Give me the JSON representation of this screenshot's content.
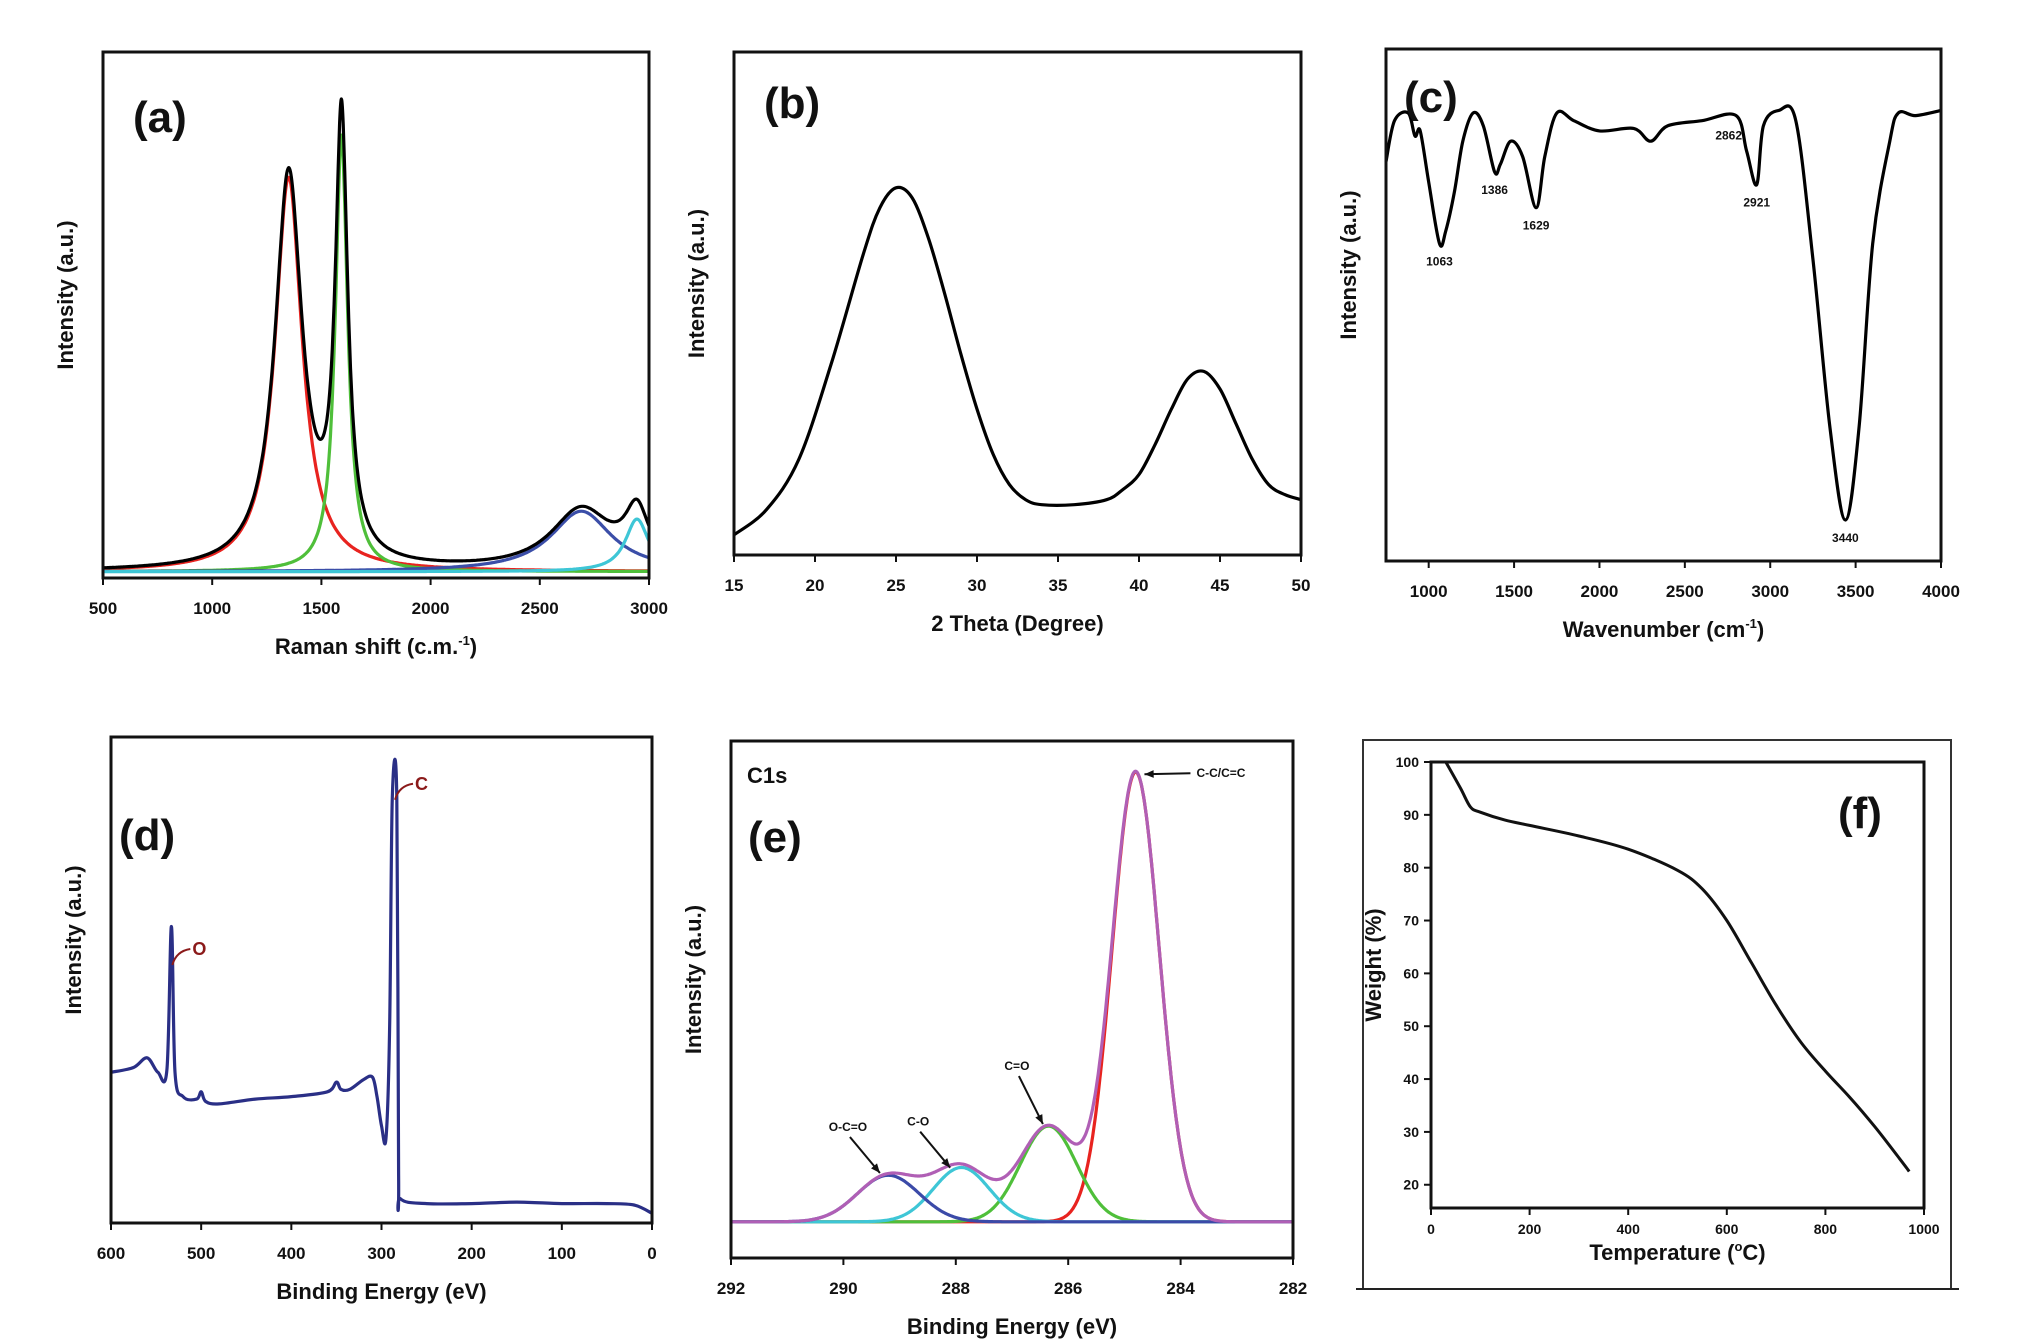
{
  "chart_data": [
    {
      "id": "a",
      "panel_label": "(a)",
      "type": "line",
      "xlabel": "Raman shift (c.m.",
      "xlabel_sup": "-1",
      "xlabel_end": ")",
      "ylabel": "Intensity (a.u.)",
      "xlim": [
        500,
        3000
      ],
      "ylim": [
        0,
        1
      ],
      "xticks": [
        "500",
        "1000",
        "1500",
        "2000",
        "2500",
        "3000"
      ],
      "grid": false,
      "legend": "none",
      "series": [
        {
          "kind": "peak",
          "shape": "lorentzian",
          "center": 1350,
          "amplitude": 0.75,
          "hwhm": 75,
          "baseline": 0.012,
          "color": "#e8231f"
        },
        {
          "kind": "peak",
          "shape": "lorentzian",
          "center": 1592,
          "amplitude": 0.83,
          "hwhm": 34,
          "baseline": 0.012,
          "color": "#4fbf3a"
        },
        {
          "kind": "peak",
          "shape": "lorentzian",
          "center": 2690,
          "amplitude": 0.115,
          "hwhm": 170,
          "baseline": 0.012,
          "color": "#3b4ea8"
        },
        {
          "kind": "peak",
          "shape": "lorentzian",
          "center": 2945,
          "amplitude": 0.1,
          "hwhm": 65,
          "baseline": 0.012,
          "color": "#3ec6d6"
        },
        {
          "kind": "sum",
          "baseline": 0.012,
          "color": "#000000"
        }
      ]
    },
    {
      "id": "b",
      "panel_label": "(b)",
      "type": "line",
      "xlabel": "2 Theta (Degree)",
      "ylabel": "Intensity (a.u.)",
      "xlim": [
        15,
        50
      ],
      "ylim": [
        0,
        1
      ],
      "xticks": [
        "15",
        "20",
        "25",
        "30",
        "35",
        "40",
        "45",
        "50"
      ],
      "grid": false,
      "legend": "none",
      "series": [
        {
          "kind": "points",
          "color": "#000000",
          "points": [
            [
              15,
              0.04
            ],
            [
              17,
              0.09
            ],
            [
              19,
              0.19
            ],
            [
              21,
              0.38
            ],
            [
              23,
              0.6
            ],
            [
              24,
              0.69
            ],
            [
              25,
              0.73
            ],
            [
              26,
              0.71
            ],
            [
              27,
              0.63
            ],
            [
              28,
              0.52
            ],
            [
              29,
              0.4
            ],
            [
              30,
              0.29
            ],
            [
              31,
              0.2
            ],
            [
              32,
              0.14
            ],
            [
              33,
              0.11
            ],
            [
              34,
              0.1
            ],
            [
              36,
              0.1
            ],
            [
              38,
              0.11
            ],
            [
              39,
              0.13
            ],
            [
              40,
              0.16
            ],
            [
              41,
              0.22
            ],
            [
              42,
              0.29
            ],
            [
              43,
              0.35
            ],
            [
              44,
              0.365
            ],
            [
              45,
              0.33
            ],
            [
              46,
              0.26
            ],
            [
              47,
              0.19
            ],
            [
              48,
              0.14
            ],
            [
              49,
              0.12
            ],
            [
              50,
              0.11
            ]
          ]
        }
      ]
    },
    {
      "id": "c",
      "panel_label": "(c)",
      "type": "line",
      "xlabel": "Wavenumber (cm",
      "xlabel_sup": "-1",
      "xlabel_end": ")",
      "ylabel": "Intensity (a.u.)",
      "xlim": [
        750,
        4000
      ],
      "ylim": [
        0,
        1
      ],
      "xticks": [
        "1000",
        "1500",
        "2000",
        "2500",
        "3000",
        "3500",
        "4000"
      ],
      "grid": false,
      "legend": "none",
      "series": [
        {
          "kind": "points",
          "color": "#000000",
          "points": [
            [
              750,
              0.78
            ],
            [
              800,
              0.86
            ],
            [
              880,
              0.875
            ],
            [
              920,
              0.83
            ],
            [
              950,
              0.84
            ],
            [
              1000,
              0.74
            ],
            [
              1063,
              0.62
            ],
            [
              1100,
              0.645
            ],
            [
              1150,
              0.72
            ],
            [
              1200,
              0.82
            ],
            [
              1260,
              0.875
            ],
            [
              1320,
              0.85
            ],
            [
              1386,
              0.76
            ],
            [
              1420,
              0.775
            ],
            [
              1480,
              0.82
            ],
            [
              1550,
              0.79
            ],
            [
              1629,
              0.69
            ],
            [
              1680,
              0.79
            ],
            [
              1750,
              0.875
            ],
            [
              1850,
              0.86
            ],
            [
              2000,
              0.84
            ],
            [
              2200,
              0.845
            ],
            [
              2300,
              0.82
            ],
            [
              2400,
              0.85
            ],
            [
              2600,
              0.86
            ],
            [
              2800,
              0.87
            ],
            [
              2862,
              0.8
            ],
            [
              2921,
              0.735
            ],
            [
              2960,
              0.85
            ],
            [
              3050,
              0.88
            ],
            [
              3150,
              0.86
            ],
            [
              3250,
              0.59
            ],
            [
              3350,
              0.26
            ],
            [
              3440,
              0.08
            ],
            [
              3520,
              0.26
            ],
            [
              3600,
              0.62
            ],
            [
              3700,
              0.82
            ],
            [
              3750,
              0.875
            ],
            [
              3850,
              0.87
            ],
            [
              4000,
              0.88
            ]
          ]
        }
      ],
      "annotations": [
        {
          "text": "1063",
          "x": 1063
        },
        {
          "text": "1386",
          "x": 1386
        },
        {
          "text": "1629",
          "x": 1629
        },
        {
          "text": "2862",
          "x": 2862
        },
        {
          "text": "2921",
          "x": 2921
        },
        {
          "text": "3440",
          "x": 3440
        }
      ]
    },
    {
      "id": "d",
      "panel_label": "(d)",
      "type": "line",
      "xlabel": "Binding Energy (eV)",
      "ylabel": "Intensity (a.u.)",
      "xlim": [
        600,
        0
      ],
      "ylim": [
        0,
        1
      ],
      "xticks": [
        "600",
        "500",
        "400",
        "300",
        "200",
        "100",
        "0"
      ],
      "grid": false,
      "legend": "none",
      "series": [
        {
          "kind": "points",
          "color": "#2a2f86",
          "points": [
            [
              600,
              0.31
            ],
            [
              575,
              0.32
            ],
            [
              560,
              0.34
            ],
            [
              548,
              0.31
            ],
            [
              538,
              0.315
            ],
            [
              533,
              0.61
            ],
            [
              529,
              0.31
            ],
            [
              520,
              0.26
            ],
            [
              505,
              0.255
            ],
            [
              500,
              0.27
            ],
            [
              495,
              0.25
            ],
            [
              480,
              0.245
            ],
            [
              440,
              0.255
            ],
            [
              400,
              0.26
            ],
            [
              360,
              0.27
            ],
            [
              350,
              0.29
            ],
            [
              345,
              0.275
            ],
            [
              335,
              0.275
            ],
            [
              320,
              0.295
            ],
            [
              310,
              0.3
            ],
            [
              305,
              0.26
            ],
            [
              300,
              0.2
            ],
            [
              295,
              0.175
            ],
            [
              291,
              0.4
            ],
            [
              288,
              0.875
            ],
            [
              283,
              0.875
            ],
            [
              281,
              0.1
            ],
            [
              279,
              0.05
            ],
            [
              250,
              0.04
            ],
            [
              200,
              0.04
            ],
            [
              150,
              0.043
            ],
            [
              100,
              0.04
            ],
            [
              50,
              0.04
            ],
            [
              20,
              0.037
            ],
            [
              0,
              0.02
            ]
          ]
        }
      ],
      "annotations": [
        {
          "text": "O",
          "x": 532
        },
        {
          "text": "C",
          "x": 285
        }
      ]
    },
    {
      "id": "e",
      "panel_label": "(e)",
      "title": "C1s",
      "type": "line",
      "xlabel": "Binding Energy (eV)",
      "ylabel": "Intensity (a.u.)",
      "xlim": [
        292,
        282
      ],
      "ylim": [
        0,
        1
      ],
      "xticks": [
        "292",
        "290",
        "288",
        "286",
        "284",
        "282"
      ],
      "grid": false,
      "legend": "none",
      "series": [
        {
          "kind": "peak",
          "shape": "gaussian",
          "center": 284.8,
          "amplitude": 0.87,
          "sigma": 0.42,
          "baseline": 0.07,
          "color": "#e8231f"
        },
        {
          "kind": "peak",
          "shape": "gaussian",
          "center": 286.35,
          "amplitude": 0.185,
          "sigma": 0.5,
          "baseline": 0.07,
          "color": "#4fbf3a"
        },
        {
          "kind": "peak",
          "shape": "gaussian",
          "center": 287.9,
          "amplitude": 0.105,
          "sigma": 0.5,
          "baseline": 0.07,
          "color": "#3ec6d6"
        },
        {
          "kind": "peak",
          "shape": "gaussian",
          "center": 289.2,
          "amplitude": 0.09,
          "sigma": 0.55,
          "baseline": 0.07,
          "color": "#3b4aa8"
        },
        {
          "kind": "sum",
          "baseline": 0.07,
          "color": "#b05fb5"
        }
      ],
      "annotations": [
        {
          "text": "C-C/C=C",
          "x": 284.75,
          "component": 0
        },
        {
          "text": "C=O",
          "x": 286.45,
          "component": 1
        },
        {
          "text": "C-O",
          "x": 288.1,
          "component": 2
        },
        {
          "text": "O-C=O",
          "x": 289.35,
          "component": 3
        }
      ]
    },
    {
      "id": "f",
      "panel_label": "(f)",
      "type": "line",
      "xlabel": "Temperature (",
      "xlabel_sup": "o",
      "xlabel_end": "C)",
      "ylabel": "Weight (%)",
      "xlim": [
        0,
        1000
      ],
      "ylim": [
        15.6,
        100
      ],
      "xticks": [
        "0",
        "200",
        "400",
        "600",
        "800",
        "1000"
      ],
      "yticks": [
        "20",
        "30",
        "40",
        "50",
        "60",
        "70",
        "80",
        "90",
        "100"
      ],
      "grid": false,
      "legend": "none",
      "series": [
        {
          "kind": "points",
          "color": "#111111",
          "points": [
            [
              30,
              100
            ],
            [
              60,
              95
            ],
            [
              80,
              91.5
            ],
            [
              100,
              90.5
            ],
            [
              150,
              89
            ],
            [
              200,
              88
            ],
            [
              300,
              86
            ],
            [
              400,
              83.5
            ],
            [
              500,
              79.5
            ],
            [
              550,
              76
            ],
            [
              600,
              70
            ],
            [
              650,
              62
            ],
            [
              700,
              54
            ],
            [
              750,
              47
            ],
            [
              800,
              41.5
            ],
            [
              850,
              36.5
            ],
            [
              900,
              31
            ],
            [
              950,
              25
            ],
            [
              970,
              22.5
            ]
          ]
        }
      ]
    }
  ]
}
